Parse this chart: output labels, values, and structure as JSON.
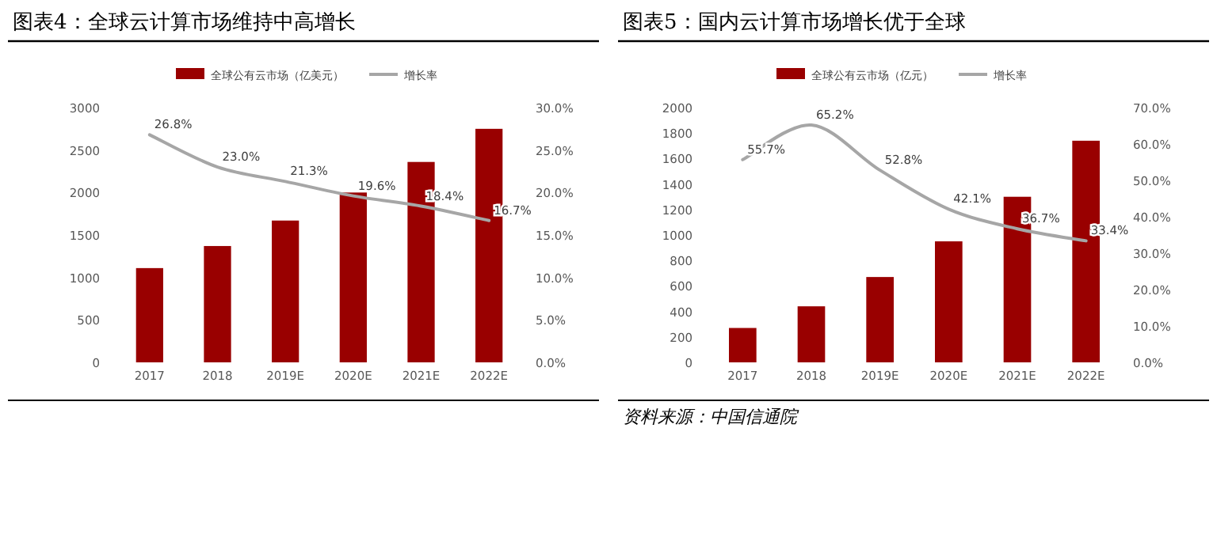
{
  "chart_data": [
    {
      "type": "bar",
      "title": "图表4：全球云计算市场维持中高增长",
      "categories": [
        "2017",
        "2018",
        "2019E",
        "2020E",
        "2021E",
        "2022E"
      ],
      "series": [
        {
          "name": "全球公有云市场（亿美元）",
          "color": "#990000",
          "values": [
            1110,
            1370,
            1670,
            2000,
            2360,
            2750
          ]
        },
        {
          "name": "增长率",
          "type": "line",
          "axis": "y2",
          "color": "#a6a6a6",
          "values": [
            26.8,
            23.0,
            21.3,
            19.6,
            18.4,
            16.7
          ],
          "value_labels": [
            "26.8%",
            "23.0%",
            "21.3%",
            "19.6%",
            "18.4%",
            "16.7%"
          ]
        }
      ],
      "ylim": [
        0,
        3000
      ],
      "yticks": [
        0,
        500,
        1000,
        1500,
        2000,
        2500,
        3000
      ],
      "y2lim": [
        0,
        30
      ],
      "y2ticks": [
        {
          "value": 0,
          "label": "0.0%"
        },
        {
          "value": 5,
          "label": "5.0%"
        },
        {
          "value": 10,
          "label": "10.0%"
        },
        {
          "value": 15,
          "label": "15.0%"
        },
        {
          "value": 20,
          "label": "20.0%"
        },
        {
          "value": 25,
          "label": "25.0%"
        },
        {
          "value": 30,
          "label": "30.0%"
        }
      ],
      "legend": "top"
    },
    {
      "type": "bar",
      "title": "图表5：国内云计算市场增长优于全球",
      "annotations": [
        "资料来源：中国信通院"
      ],
      "categories": [
        "2017",
        "2018",
        "2019E",
        "2020E",
        "2021E",
        "2022E"
      ],
      "series": [
        {
          "name": "全球公有云市场（亿元）",
          "color": "#990000",
          "values": [
            270,
            440,
            670,
            950,
            1300,
            1740
          ]
        },
        {
          "name": "增长率",
          "type": "line",
          "axis": "y2",
          "color": "#a6a6a6",
          "values": [
            55.7,
            65.2,
            52.8,
            42.1,
            36.7,
            33.4
          ],
          "value_labels": [
            "55.7%",
            "65.2%",
            "52.8%",
            "42.1%",
            "36.7%",
            "33.4%"
          ]
        }
      ],
      "ylim": [
        0,
        2000
      ],
      "yticks": [
        0,
        200,
        400,
        600,
        800,
        1000,
        1200,
        1400,
        1600,
        1800,
        2000
      ],
      "y2lim": [
        0,
        70
      ],
      "y2ticks": [
        {
          "value": 0,
          "label": "0.0%"
        },
        {
          "value": 10,
          "label": "10.0%"
        },
        {
          "value": 20,
          "label": "20.0%"
        },
        {
          "value": 30,
          "label": "30.0%"
        },
        {
          "value": 40,
          "label": "40.0%"
        },
        {
          "value": 50,
          "label": "50.0%"
        },
        {
          "value": 60,
          "label": "60.0%"
        },
        {
          "value": 70,
          "label": "70.0%"
        }
      ],
      "legend": "top"
    }
  ]
}
